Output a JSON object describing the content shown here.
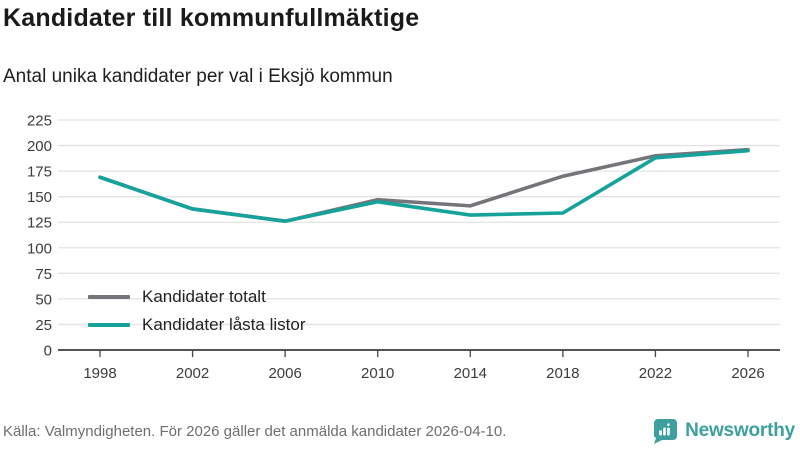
{
  "header": {
    "title": "Kandidater till kommunfullmäktige",
    "subtitle": "Antal unika kandidater per val i Eksjö kommun"
  },
  "chart_data": {
    "type": "line",
    "x": [
      1998,
      2002,
      2006,
      2010,
      2014,
      2018,
      2022,
      2026
    ],
    "series": [
      {
        "name": "Kandidater totalt",
        "color": "#74747a",
        "values": [
          169,
          138,
          126,
          147,
          141,
          170,
          190,
          196
        ]
      },
      {
        "name": "Kandidater låsta listor",
        "color": "#14a29a",
        "values": [
          169,
          138,
          126,
          145,
          132,
          134,
          188,
          195
        ]
      }
    ],
    "ylim": [
      0,
      225
    ],
    "yticks": [
      0,
      25,
      50,
      75,
      100,
      125,
      150,
      175,
      200,
      225
    ],
    "grid": true,
    "legend_position": "inside-bottom-left",
    "gridline_color": "#e3e3e3",
    "axis_color": "#1a1a1a",
    "tick_color": "#444444"
  },
  "legend": {
    "items": [
      {
        "label": "Kandidater totalt"
      },
      {
        "label": "Kandidater låsta listor"
      }
    ]
  },
  "footer": {
    "source": "Källa: Valmyndigheten. För 2026 gäller det anmälda kandidater 2026-04-10.",
    "brand": "Newsworthy",
    "brand_color": "#3d9f9e"
  }
}
